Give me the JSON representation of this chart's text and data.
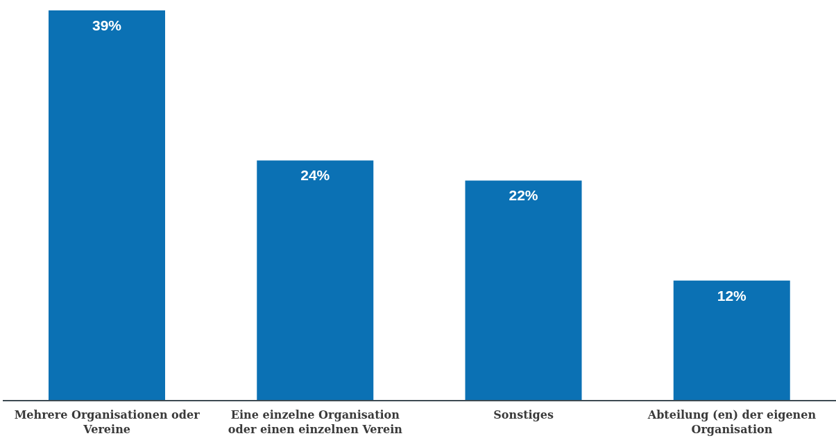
{
  "chart_data": {
    "type": "bar",
    "categories": [
      "Mehrere Organisationen oder Vereine",
      "Eine einzelne Organisation oder einen einzelnen Verein",
      "Sonstiges",
      "Abteilung (en) der eigenen Organisation"
    ],
    "values": [
      39,
      24,
      22,
      12
    ],
    "color": "#0b71b4",
    "value_labels": [
      "39%",
      "24%",
      "22%",
      "12%"
    ],
    "ylim": [
      0,
      39
    ],
    "tick_labels": "x",
    "grid": false,
    "legend": false
  }
}
